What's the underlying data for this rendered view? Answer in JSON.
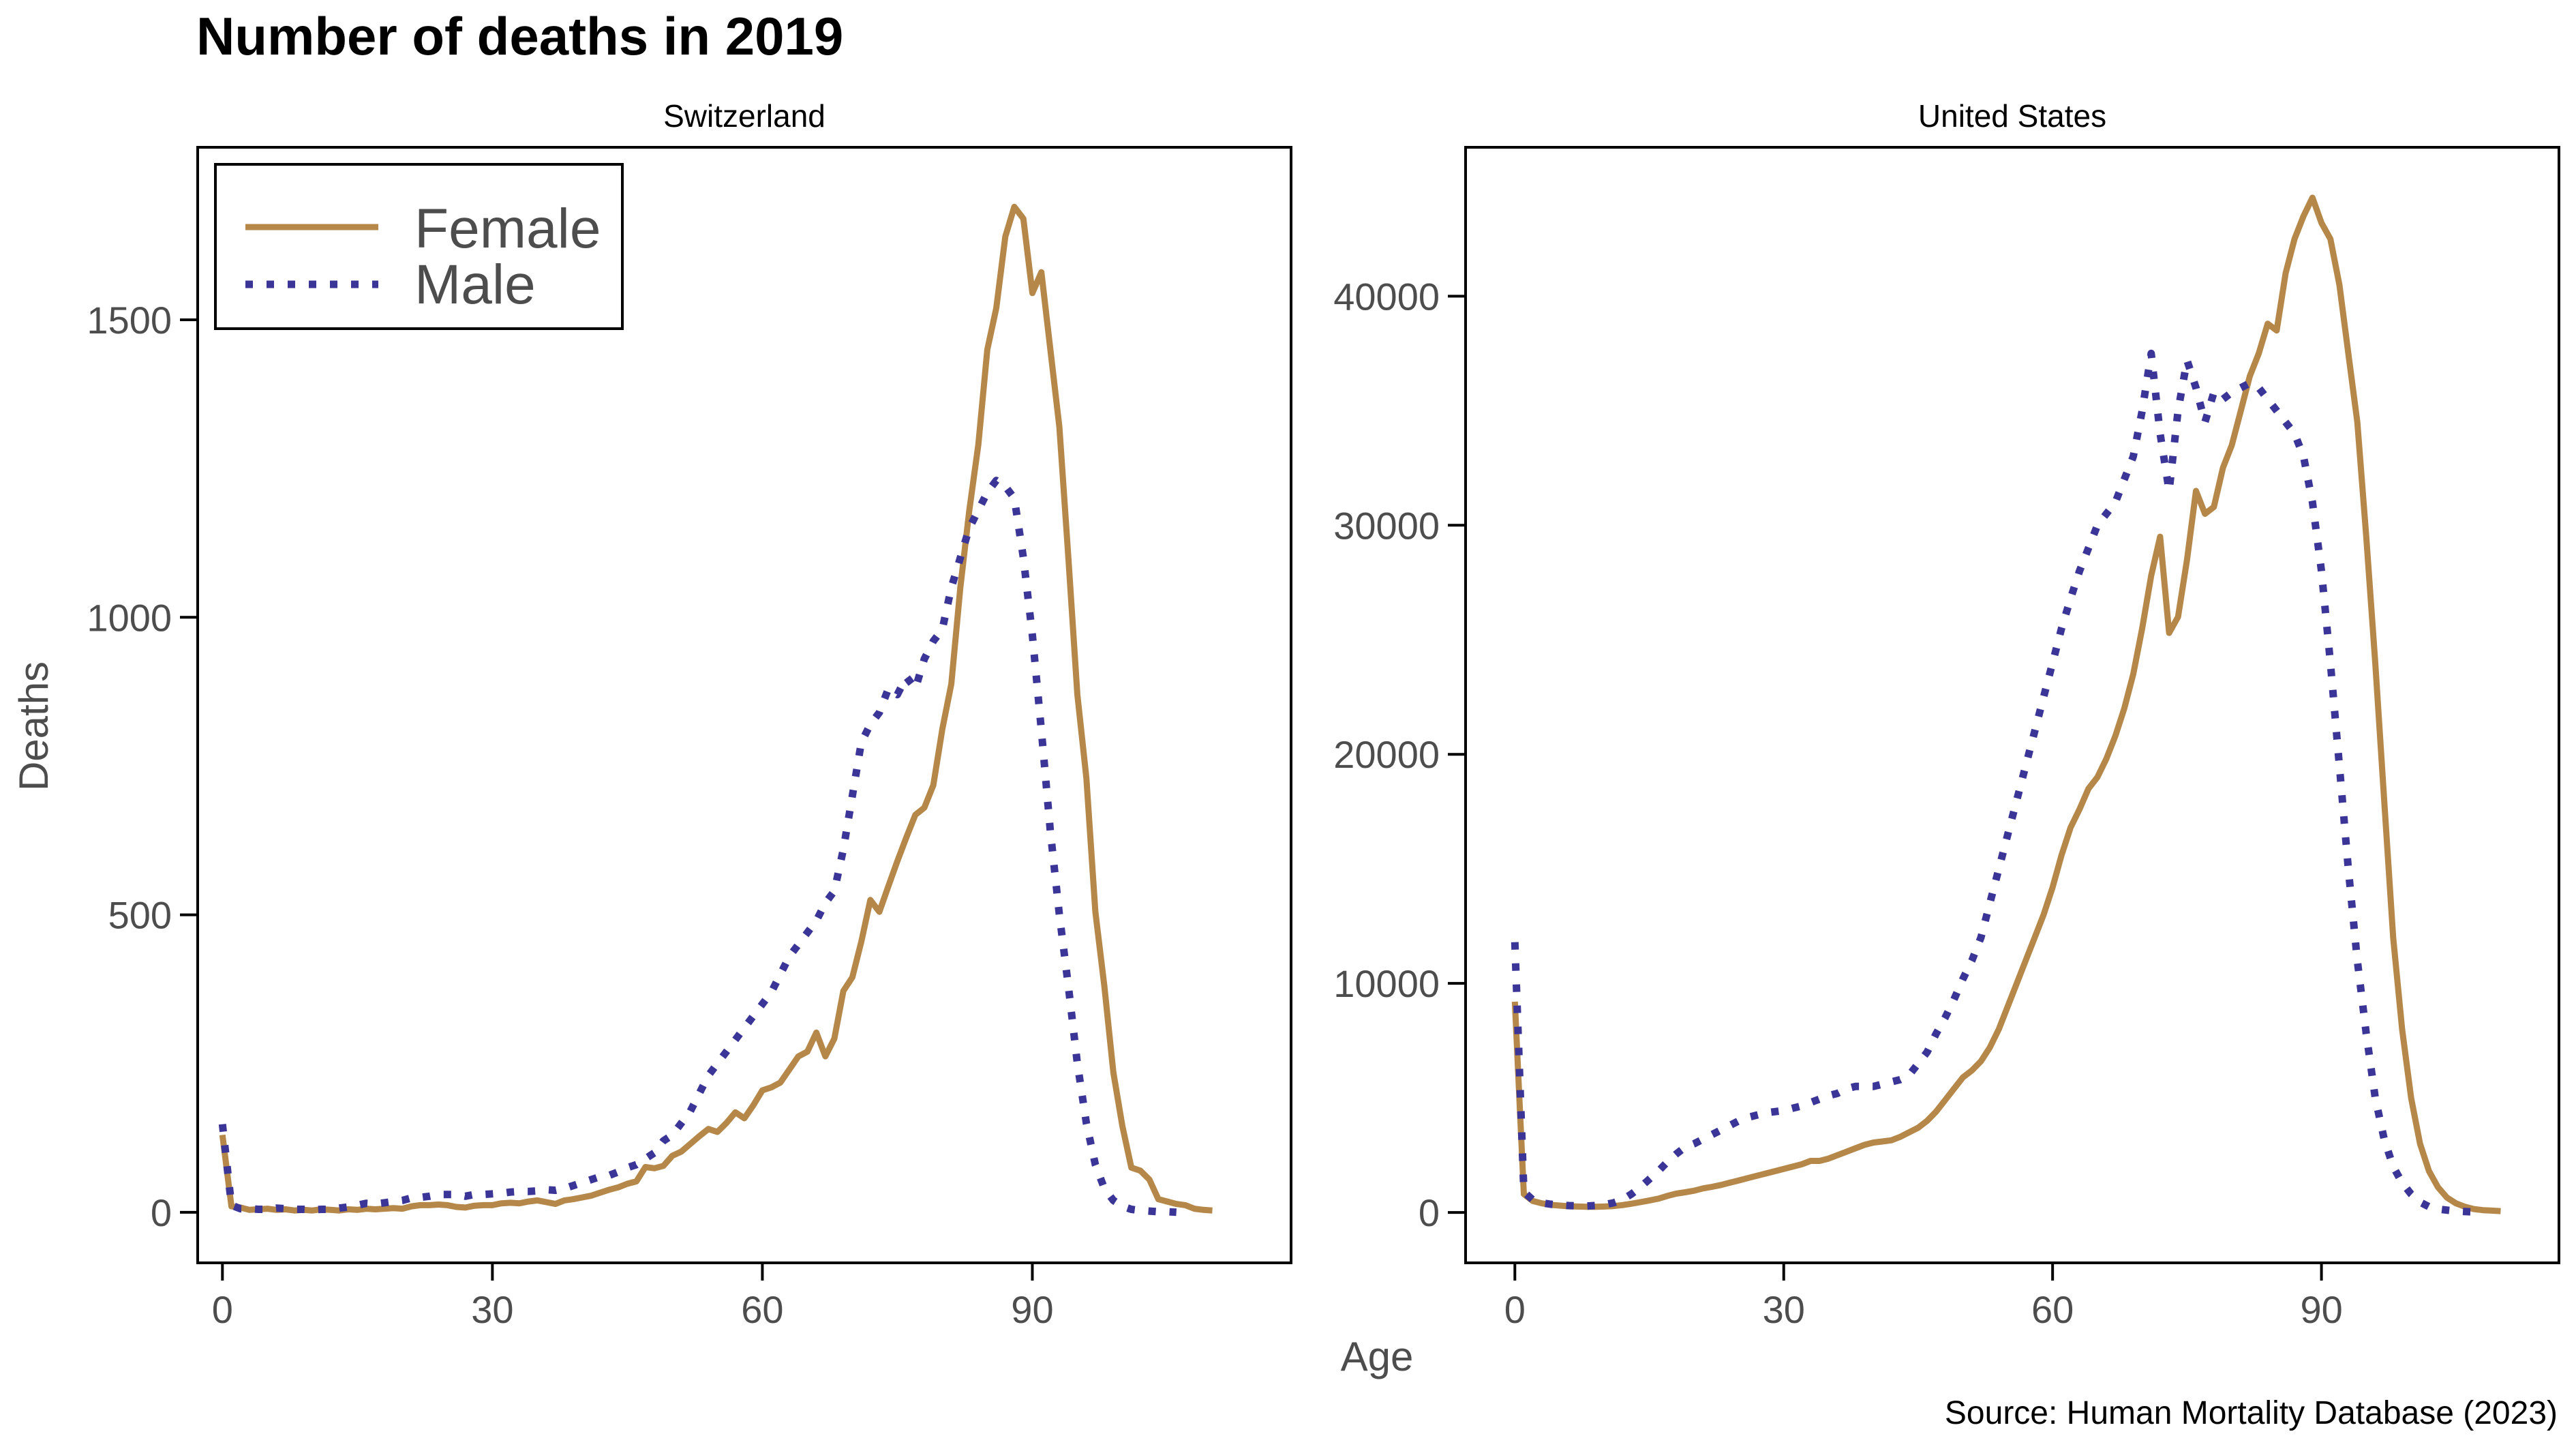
{
  "title": "Number of deaths in 2019",
  "caption": "Source: Human Mortality Database (2023)",
  "x_axis_label": "Age",
  "y_axis_label": "Deaths",
  "legend": [
    {
      "label": "Female",
      "color": "#b5884a",
      "style": "solid"
    },
    {
      "label": "Male",
      "color": "#3b3598",
      "style": "dotted"
    }
  ],
  "chart_data": [
    {
      "type": "line",
      "title": "Switzerland",
      "xlabel": "Age",
      "ylabel": "Deaths",
      "xlim": [
        -2.75,
        118.75
      ],
      "ylim": [
        -85,
        1790
      ],
      "xticks": [
        0,
        30,
        60,
        90
      ],
      "yticks": [
        0,
        500,
        1000,
        1500
      ],
      "grid": false,
      "legend_position": "top-left",
      "series": [
        {
          "name": "Female",
          "x": [
            0,
            1,
            2,
            3,
            4,
            5,
            6,
            7,
            8,
            9,
            10,
            11,
            12,
            13,
            14,
            15,
            16,
            17,
            18,
            19,
            20,
            21,
            22,
            23,
            24,
            25,
            26,
            27,
            28,
            29,
            30,
            31,
            32,
            33,
            34,
            35,
            36,
            37,
            38,
            39,
            40,
            41,
            42,
            43,
            44,
            45,
            46,
            47,
            48,
            49,
            50,
            51,
            52,
            53,
            54,
            55,
            56,
            57,
            58,
            59,
            60,
            61,
            62,
            63,
            64,
            65,
            66,
            67,
            68,
            69,
            70,
            71,
            72,
            73,
            74,
            75,
            76,
            77,
            78,
            79,
            80,
            81,
            82,
            83,
            84,
            85,
            86,
            87,
            88,
            89,
            90,
            91,
            92,
            93,
            94,
            95,
            96,
            97,
            98,
            99,
            100,
            101,
            102,
            103,
            104,
            105,
            106,
            107,
            108,
            109,
            110
          ],
          "y": [
            130,
            10,
            8,
            4,
            5,
            6,
            4,
            5,
            3,
            4,
            3,
            5,
            4,
            3,
            5,
            4,
            6,
            5,
            6,
            7,
            6,
            10,
            12,
            12,
            13,
            12,
            9,
            8,
            11,
            12,
            12,
            15,
            16,
            15,
            18,
            20,
            17,
            14,
            20,
            22,
            25,
            28,
            33,
            38,
            42,
            48,
            52,
            76,
            74,
            78,
            95,
            102,
            115,
            128,
            140,
            135,
            150,
            168,
            158,
            180,
            205,
            210,
            218,
            240,
            262,
            270,
            302,
            262,
            292,
            372,
            395,
            455,
            525,
            505,
            548,
            590,
            630,
            668,
            680,
            718,
            812,
            888,
            1050,
            1180,
            1290,
            1450,
            1520,
            1640,
            1690,
            1670,
            1545,
            1580,
            1450,
            1320,
            1100,
            870,
            730,
            505,
            380,
            235,
            145,
            75,
            70,
            55,
            22,
            18,
            14,
            12,
            6,
            4,
            3
          ]
        },
        {
          "name": "Male",
          "x": [
            0,
            1,
            2,
            3,
            4,
            5,
            6,
            7,
            8,
            9,
            10,
            11,
            12,
            13,
            14,
            15,
            16,
            17,
            18,
            19,
            20,
            21,
            22,
            23,
            24,
            25,
            26,
            27,
            28,
            29,
            30,
            31,
            32,
            33,
            34,
            35,
            36,
            37,
            38,
            39,
            40,
            41,
            42,
            43,
            44,
            45,
            46,
            47,
            48,
            49,
            50,
            51,
            52,
            53,
            54,
            55,
            56,
            57,
            58,
            59,
            60,
            61,
            62,
            63,
            64,
            65,
            66,
            67,
            68,
            69,
            70,
            71,
            72,
            73,
            74,
            75,
            76,
            77,
            78,
            79,
            80,
            81,
            82,
            83,
            84,
            85,
            86,
            87,
            88,
            89,
            90,
            91,
            92,
            93,
            94,
            95,
            96,
            97,
            98,
            99,
            100,
            101,
            102,
            103,
            104,
            105,
            106
          ],
          "y": [
            148,
            12,
            6,
            6,
            5,
            5,
            7,
            6,
            5,
            5,
            4,
            5,
            5,
            7,
            9,
            12,
            15,
            14,
            16,
            18,
            20,
            24,
            25,
            27,
            30,
            30,
            30,
            27,
            30,
            30,
            31,
            32,
            34,
            35,
            35,
            36,
            38,
            37,
            40,
            45,
            50,
            55,
            60,
            62,
            68,
            75,
            80,
            90,
            100,
            120,
            130,
            150,
            170,
            200,
            230,
            250,
            270,
            290,
            310,
            330,
            350,
            370,
            400,
            430,
            450,
            470,
            490,
            520,
            540,
            610,
            700,
            790,
            820,
            840,
            880,
            870,
            900,
            880,
            930,
            960,
            980,
            1050,
            1100,
            1150,
            1180,
            1210,
            1230,
            1220,
            1200,
            1100,
            970,
            810,
            640,
            500,
            380,
            250,
            150,
            80,
            40,
            20,
            10,
            5,
            3,
            2,
            1,
            1,
            0
          ]
        }
      ]
    },
    {
      "type": "line",
      "title": "United States",
      "xlabel": "Age",
      "ylabel": "Deaths",
      "xlim": [
        -5.5,
        116.5
      ],
      "ylim": [
        -2200,
        46500
      ],
      "xticks": [
        0,
        30,
        60,
        90
      ],
      "yticks": [
        0,
        10000,
        20000,
        30000,
        40000
      ],
      "grid": false,
      "legend_position": "none",
      "series": [
        {
          "name": "Female",
          "x": [
            0,
            1,
            2,
            3,
            4,
            5,
            6,
            7,
            8,
            9,
            10,
            11,
            12,
            13,
            14,
            15,
            16,
            17,
            18,
            19,
            20,
            21,
            22,
            23,
            24,
            25,
            26,
            27,
            28,
            29,
            30,
            31,
            32,
            33,
            34,
            35,
            36,
            37,
            38,
            39,
            40,
            41,
            42,
            43,
            44,
            45,
            46,
            47,
            48,
            49,
            50,
            51,
            52,
            53,
            54,
            55,
            56,
            57,
            58,
            59,
            60,
            61,
            62,
            63,
            64,
            65,
            66,
            67,
            68,
            69,
            70,
            71,
            72,
            73,
            74,
            75,
            76,
            77,
            78,
            79,
            80,
            81,
            82,
            83,
            84,
            85,
            86,
            87,
            88,
            89,
            90,
            91,
            92,
            93,
            94,
            95,
            96,
            97,
            98,
            99,
            100,
            101,
            102,
            103,
            104,
            105,
            106,
            107,
            108,
            109,
            110
          ],
          "y": [
            9200,
            800,
            500,
            400,
            330,
            300,
            270,
            260,
            250,
            250,
            260,
            280,
            320,
            380,
            450,
            520,
            600,
            720,
            820,
            880,
            950,
            1050,
            1120,
            1200,
            1300,
            1400,
            1500,
            1600,
            1700,
            1800,
            1900,
            2000,
            2100,
            2250,
            2250,
            2350,
            2500,
            2650,
            2800,
            2950,
            3050,
            3100,
            3150,
            3300,
            3500,
            3700,
            4000,
            4400,
            4900,
            5400,
            5900,
            6200,
            6600,
            7200,
            8000,
            9000,
            10000,
            11000,
            12000,
            13000,
            14200,
            15600,
            16800,
            17600,
            18500,
            19000,
            19800,
            20800,
            22000,
            23500,
            25500,
            27800,
            29500,
            25300,
            26000,
            28500,
            31500,
            30500,
            30800,
            32500,
            33500,
            35000,
            36500,
            37500,
            38800,
            38500,
            41000,
            42500,
            43500,
            44300,
            43200,
            42500,
            40500,
            37500,
            34500,
            29500,
            24000,
            18000,
            12000,
            8000,
            5000,
            3000,
            1800,
            1100,
            650,
            400,
            250,
            150,
            100,
            80,
            60
          ]
        },
        {
          "name": "Male",
          "x": [
            0,
            1,
            2,
            3,
            4,
            5,
            6,
            7,
            8,
            9,
            10,
            11,
            12,
            13,
            14,
            15,
            16,
            17,
            18,
            19,
            20,
            21,
            22,
            23,
            24,
            25,
            26,
            27,
            28,
            29,
            30,
            31,
            32,
            33,
            34,
            35,
            36,
            37,
            38,
            39,
            40,
            41,
            42,
            43,
            44,
            45,
            46,
            47,
            48,
            49,
            50,
            51,
            52,
            53,
            54,
            55,
            56,
            57,
            58,
            59,
            60,
            61,
            62,
            63,
            64,
            65,
            66,
            67,
            68,
            69,
            70,
            71,
            72,
            73,
            74,
            75,
            76,
            77,
            78,
            79,
            80,
            81,
            82,
            83,
            84,
            85,
            86,
            87,
            88,
            89,
            90,
            91,
            92,
            93,
            94,
            95,
            96,
            97,
            98,
            99,
            100,
            101,
            102,
            103,
            104,
            105,
            106,
            107,
            108
          ],
          "y": [
            11800,
            900,
            550,
            420,
            360,
            320,
            300,
            290,
            280,
            300,
            340,
            420,
            560,
            800,
            1100,
            1450,
            1800,
            2200,
            2550,
            2850,
            3000,
            3200,
            3400,
            3600,
            3800,
            4000,
            4150,
            4250,
            4350,
            4400,
            4450,
            4550,
            4650,
            4800,
            4950,
            5100,
            5200,
            5400,
            5500,
            5500,
            5500,
            5600,
            5700,
            5800,
            6000,
            6500,
            7000,
            7800,
            8500,
            9300,
            10200,
            11000,
            12000,
            13500,
            15000,
            16500,
            18000,
            19500,
            21000,
            22500,
            24000,
            25500,
            26800,
            28000,
            29000,
            30000,
            30500,
            31000,
            32000,
            33000,
            35000,
            37500,
            34000,
            31500,
            35000,
            37200,
            36000,
            34500,
            35800,
            35500,
            35800,
            36000,
            36200,
            36000,
            35500,
            35000,
            34500,
            34000,
            33000,
            31000,
            28000,
            24000,
            19500,
            15000,
            11000,
            7800,
            5000,
            3200,
            2000,
            1300,
            800,
            450,
            250,
            150,
            100,
            60,
            40,
            25,
            15
          ]
        }
      ]
    }
  ]
}
